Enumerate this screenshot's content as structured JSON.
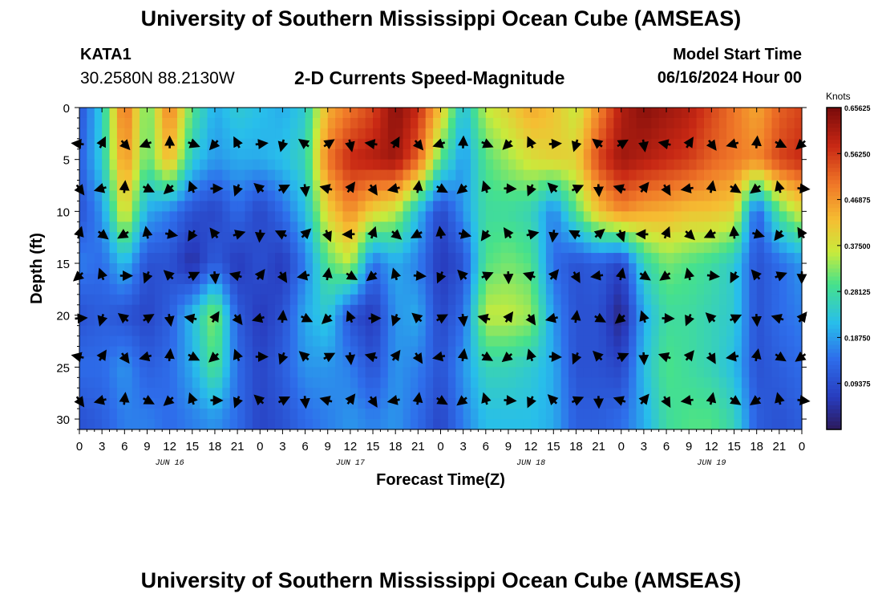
{
  "header": {
    "title": "University of Southern Mississippi Ocean Cube (AMSEAS)",
    "station_id": "KATA1",
    "coordinates": "30.2580N  88.2130W",
    "subtitle": "2-D Currents Speed-Magnitude",
    "model_start_label": "Model Start Time",
    "model_start_value": "06/16/2024 Hour 00"
  },
  "footer": {
    "title_repeat": "University of Southern Mississippi Ocean Cube (AMSEAS)"
  },
  "chart_data": {
    "type": "heatmap",
    "title": "2-D Currents Speed-Magnitude",
    "xlabel": "Forecast Time(Z)",
    "ylabel": "Depth (ft)",
    "x_tick_labels": [
      "0",
      "3",
      "6",
      "9",
      "12",
      "15",
      "18",
      "21",
      "0",
      "3",
      "6",
      "9",
      "12",
      "15",
      "18",
      "21",
      "0",
      "3",
      "6",
      "9",
      "12",
      "15",
      "18",
      "21",
      "0",
      "3",
      "6",
      "9",
      "12",
      "15",
      "18",
      "21",
      "0"
    ],
    "date_labels": [
      {
        "label": "JUN 16",
        "hour": 12
      },
      {
        "label": "JUN 17",
        "hour": 36
      },
      {
        "label": "JUN 18",
        "hour": 60
      },
      {
        "label": "JUN 19",
        "hour": 84
      }
    ],
    "xlim_hours": [
      0,
      96
    ],
    "y_ticks": [
      0,
      5,
      10,
      15,
      20,
      25,
      30
    ],
    "ylim": [
      0,
      31
    ],
    "colorbar": {
      "unit": "Knots",
      "min": 0,
      "max": 0.65625,
      "tick_labels": [
        "0.65625",
        "0.56250",
        "0.46875",
        "0.37500",
        "0.28125",
        "0.18750",
        "0.09375"
      ],
      "tick_values": [
        0.65625,
        0.5625,
        0.46875,
        0.375,
        0.28125,
        0.1875,
        0.09375
      ]
    },
    "arrow_depths": [
      3.5,
      7.8,
      12.2,
      16.2,
      20.3,
      24.0,
      28.2
    ],
    "arrow_hours_step": 3,
    "speed_grid_note": "approximate knots sampled every 3 h (33 cols) at depths 0,5,10,15,20,25,30 ft",
    "speed_grid": [
      [
        0.1,
        0.24,
        0.52,
        0.3,
        0.5,
        0.3,
        0.2,
        0.24,
        0.22,
        0.2,
        0.24,
        0.44,
        0.5,
        0.55,
        0.64,
        0.58,
        0.42,
        0.22,
        0.36,
        0.4,
        0.45,
        0.42,
        0.36,
        0.48,
        0.6,
        0.64,
        0.62,
        0.6,
        0.55,
        0.5,
        0.45,
        0.52,
        0.55
      ],
      [
        0.12,
        0.24,
        0.48,
        0.3,
        0.44,
        0.24,
        0.18,
        0.2,
        0.2,
        0.22,
        0.26,
        0.5,
        0.58,
        0.6,
        0.62,
        0.52,
        0.3,
        0.18,
        0.3,
        0.34,
        0.38,
        0.4,
        0.4,
        0.55,
        0.62,
        0.6,
        0.58,
        0.56,
        0.52,
        0.5,
        0.48,
        0.55,
        0.58
      ],
      [
        0.1,
        0.18,
        0.4,
        0.2,
        0.16,
        0.1,
        0.08,
        0.14,
        0.08,
        0.14,
        0.22,
        0.4,
        0.48,
        0.4,
        0.36,
        0.22,
        0.08,
        0.18,
        0.28,
        0.28,
        0.26,
        0.16,
        0.3,
        0.42,
        0.48,
        0.45,
        0.44,
        0.42,
        0.42,
        0.4,
        0.12,
        0.3,
        0.38
      ],
      [
        0.16,
        0.14,
        0.22,
        0.1,
        0.1,
        0.04,
        0.12,
        0.06,
        0.1,
        0.06,
        0.16,
        0.3,
        0.36,
        0.14,
        0.2,
        0.16,
        0.06,
        0.1,
        0.3,
        0.32,
        0.3,
        0.14,
        0.1,
        0.12,
        0.08,
        0.26,
        0.32,
        0.3,
        0.28,
        0.24,
        0.1,
        0.14,
        0.18
      ],
      [
        0.1,
        0.12,
        0.1,
        0.08,
        0.12,
        0.22,
        0.34,
        0.12,
        0.06,
        0.1,
        0.2,
        0.24,
        0.1,
        0.06,
        0.18,
        0.2,
        0.08,
        0.14,
        0.36,
        0.36,
        0.34,
        0.18,
        0.1,
        0.1,
        0.02,
        0.2,
        0.28,
        0.28,
        0.26,
        0.24,
        0.1,
        0.14,
        0.16
      ],
      [
        0.14,
        0.14,
        0.18,
        0.12,
        0.14,
        0.2,
        0.3,
        0.14,
        0.08,
        0.12,
        0.18,
        0.18,
        0.16,
        0.1,
        0.18,
        0.16,
        0.1,
        0.18,
        0.26,
        0.26,
        0.24,
        0.2,
        0.1,
        0.1,
        0.08,
        0.22,
        0.3,
        0.28,
        0.26,
        0.22,
        0.1,
        0.12,
        0.14
      ],
      [
        0.1,
        0.12,
        0.16,
        0.16,
        0.14,
        0.16,
        0.18,
        0.14,
        0.08,
        0.1,
        0.14,
        0.16,
        0.18,
        0.16,
        0.18,
        0.14,
        0.08,
        0.16,
        0.22,
        0.22,
        0.22,
        0.2,
        0.12,
        0.12,
        0.14,
        0.2,
        0.28,
        0.3,
        0.3,
        0.26,
        0.12,
        0.1,
        0.12
      ]
    ]
  }
}
